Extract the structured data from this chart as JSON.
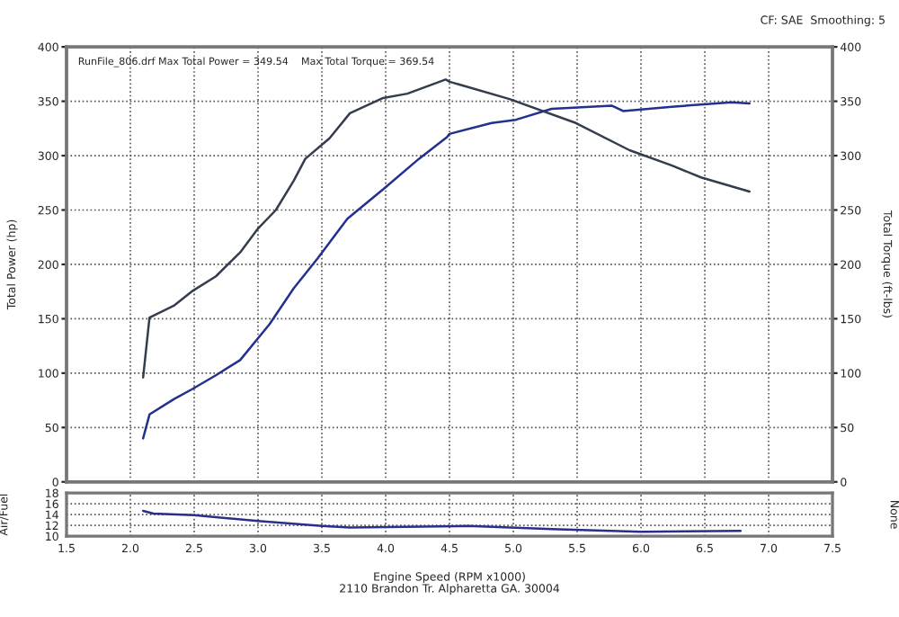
{
  "chart_data": [
    {
      "type": "line",
      "ylabel": "Total Power (hp)",
      "y2label": "Total Torque (ft-lbs)",
      "xlim": [
        1.5,
        7.5
      ],
      "xticks": [
        1.5,
        2.0,
        2.5,
        3.0,
        3.5,
        4.0,
        4.5,
        5.0,
        5.5,
        6.0,
        6.5,
        7.0,
        7.5
      ],
      "ylim": [
        0,
        400
      ],
      "yticks": [
        0,
        50,
        100,
        150,
        200,
        250,
        300,
        350,
        400
      ],
      "y2lim": [
        0,
        400
      ],
      "y2ticks": [
        0,
        50,
        100,
        150,
        200,
        250,
        300,
        350,
        400
      ],
      "grid": true,
      "tick_labels": "y",
      "line_style": "solid",
      "annotations": [
        "CF: SAE  Smoothing: 5",
        "RunFile_806.drf Max Total Power = 349.54    Max Total Torque = 369.54"
      ],
      "series": [
        {
          "color": "#23308f",
          "x": [
            2.1,
            2.15,
            2.34,
            2.48,
            2.67,
            2.86,
            3.09,
            3.28,
            3.47,
            3.7,
            3.98,
            4.26,
            4.48,
            4.5,
            4.83,
            5.02,
            5.3,
            5.77,
            5.86,
            6.24,
            6.71,
            6.85
          ],
          "values": [
            40,
            62,
            76,
            85,
            98,
            112,
            145,
            178,
            206,
            242,
            269,
            297,
            317,
            320,
            330,
            333,
            343,
            346,
            341,
            345,
            349,
            348
          ]
        },
        {
          "color": "#333d4d",
          "x": [
            2.1,
            2.15,
            2.34,
            2.48,
            2.67,
            2.86,
            3.0,
            3.14,
            3.28,
            3.37,
            3.56,
            3.72,
            3.98,
            4.17,
            4.47,
            4.5,
            4.97,
            5.49,
            5.91,
            6.24,
            6.47,
            6.85
          ],
          "values": [
            96,
            151,
            162,
            175,
            189,
            211,
            233,
            250,
            277,
            297,
            316,
            339,
            353,
            357,
            370,
            368,
            352,
            330,
            305,
            291,
            280,
            267
          ]
        }
      ]
    },
    {
      "type": "line",
      "xlabel": "Engine Speed (RPM x1000)",
      "ylabel": "Air/Fuel",
      "y2label": "None",
      "xlim": [
        1.5,
        7.5
      ],
      "xticks": [
        1.5,
        {
          "value": 2,
          "label": "2.0"
        },
        2.5,
        {
          "value": 3,
          "label": "3.0"
        },
        3.5,
        {
          "value": 4,
          "label": "4.0"
        },
        4.5,
        {
          "value": 5,
          "label": "5.0"
        },
        5.5,
        {
          "value": 6,
          "label": "6.0"
        },
        6.5,
        {
          "value": 7,
          "label": "7.0"
        },
        7.5
      ],
      "ylim": [
        10,
        18
      ],
      "yticks": [
        10,
        12,
        14,
        16,
        18
      ],
      "grid": true,
      "line_style": "solid",
      "annotations": [
        "2110 Brandon Tr. Alpharetta GA. 30004"
      ],
      "series": [
        {
          "color": "#2a2f8a",
          "x": [
            2.1,
            2.18,
            2.5,
            3.0,
            3.5,
            3.72,
            4.65,
            5.3,
            6.0,
            6.78
          ],
          "values": [
            14.7,
            14.2,
            13.9,
            12.8,
            11.9,
            11.6,
            11.9,
            11.3,
            10.8,
            11.0
          ]
        }
      ]
    }
  ]
}
